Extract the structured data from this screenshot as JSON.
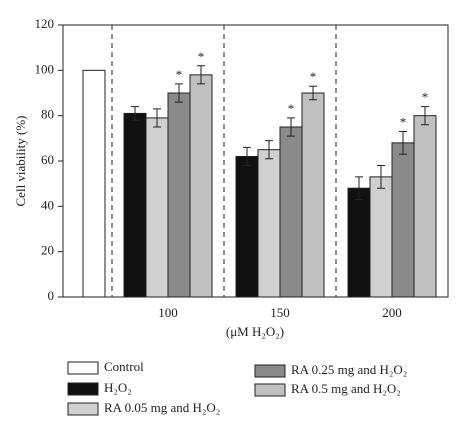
{
  "chart_data": {
    "type": "bar",
    "ylabel": "Cell viability (%)",
    "xlabel": "(μM H₂O₂)",
    "categories": [
      null,
      "100",
      "150",
      "200"
    ],
    "series": [
      {
        "name": "Control",
        "color": "#ffffff",
        "values": [
          100,
          null,
          null,
          null
        ],
        "errors": [
          null,
          null,
          null,
          null
        ],
        "annotations": [
          null,
          null,
          null,
          null
        ]
      },
      {
        "name": "H₂O₂",
        "color": "#111111",
        "values": [
          null,
          81,
          62,
          48
        ],
        "errors": [
          null,
          3,
          4,
          5
        ],
        "annotations": [
          null,
          null,
          null,
          null
        ]
      },
      {
        "name": "RA 0.05 mg and H₂O₂",
        "color": "#d0d0d0",
        "values": [
          null,
          79,
          65,
          53
        ],
        "errors": [
          null,
          4,
          4,
          5
        ],
        "annotations": [
          null,
          null,
          null,
          null
        ]
      },
      {
        "name": "RA 0.25 mg and H₂O₂",
        "color": "#8a8a8a",
        "values": [
          null,
          90,
          75,
          68
        ],
        "errors": [
          null,
          4,
          4,
          5
        ],
        "annotations": [
          null,
          "*",
          "*",
          "*"
        ]
      },
      {
        "name": "RA 0.5 mg and H₂O₂",
        "color": "#c0c0c0",
        "values": [
          null,
          98,
          90,
          80
        ],
        "errors": [
          null,
          4,
          3,
          4
        ],
        "annotations": [
          null,
          "*",
          "*",
          "*"
        ]
      }
    ],
    "ylim": [
      0,
      120
    ],
    "yticks": [
      0,
      20,
      40,
      60,
      80,
      100,
      120
    ],
    "grid": false,
    "legend": "bottom"
  }
}
